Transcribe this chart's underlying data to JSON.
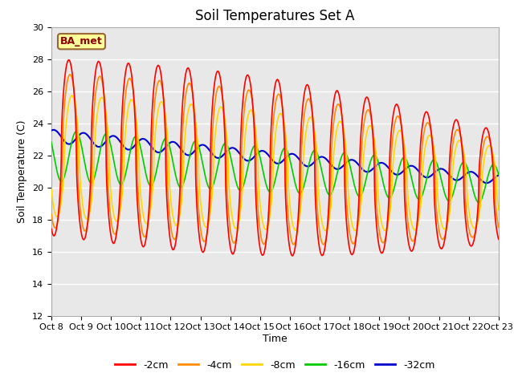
{
  "title": "Soil Temperatures Set A",
  "xlabel": "Time",
  "ylabel": "Soil Temperature (C)",
  "ylim": [
    12,
    30
  ],
  "xlim": [
    0,
    360
  ],
  "annotation_text": "BA_met",
  "series": {
    "-2cm": {
      "color": "#FF0000",
      "lw": 1.2
    },
    "-4cm": {
      "color": "#FF8C00",
      "lw": 1.2
    },
    "-8cm": {
      "color": "#FFD700",
      "lw": 1.2
    },
    "-16cm": {
      "color": "#00CC00",
      "lw": 1.2
    },
    "-32cm": {
      "color": "#0000CC",
      "lw": 1.5
    }
  },
  "tick_labels": [
    "Oct 8",
    "Oct 9",
    "Oct 10",
    "Oct 11",
    "Oct 12",
    "Oct 13",
    "Oct 14",
    "Oct 15",
    "Oct 16",
    "Oct 17",
    "Oct 18",
    "Oct 19",
    "Oct 20",
    "Oct 21",
    "Oct 22",
    "Oct 23"
  ],
  "yticks": [
    12,
    14,
    16,
    18,
    20,
    22,
    24,
    26,
    28,
    30
  ],
  "background_outer": "#FFFFFF",
  "background_inner": "#E8E8E8",
  "grid_color": "#FFFFFF",
  "title_fontsize": 12,
  "axis_label_fontsize": 9,
  "tick_fontsize": 8,
  "legend_fontsize": 9,
  "figsize": [
    6.4,
    4.8
  ],
  "dpi": 100
}
